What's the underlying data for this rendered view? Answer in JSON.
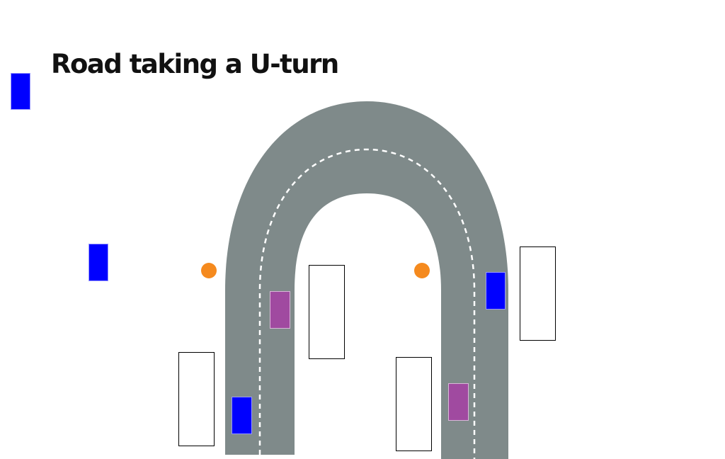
{
  "title": "Road taking a U-turn",
  "colors": {
    "road": "#7f8a8a",
    "lane_marking": "#ffffff",
    "player_car": "#0000ff",
    "traffic_car": "#a04aa0",
    "cone": "#f58a1e"
  },
  "icons": {
    "cone": "traffic-cone-icon",
    "car": "car-icon",
    "slot": "parking-slot-icon"
  }
}
